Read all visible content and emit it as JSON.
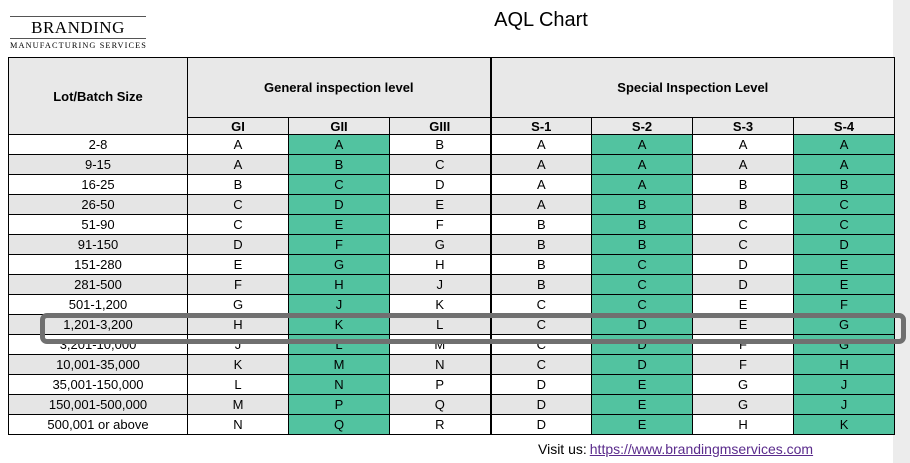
{
  "logo": {
    "name": "BRANDING",
    "tagline": "MANUFACTURING SERVICES"
  },
  "title": "AQL Chart",
  "headers": {
    "lot": "Lot/Batch Size",
    "general": "General inspection level",
    "special": "Special Inspection Level",
    "columns": [
      "GI",
      "GII",
      "GIII",
      "S-1",
      "S-2",
      "S-3",
      "S-4"
    ]
  },
  "rows": [
    {
      "lot": "2-8",
      "codes": [
        "A",
        "A",
        "B",
        "A",
        "A",
        "A",
        "A"
      ]
    },
    {
      "lot": "9-15",
      "codes": [
        "A",
        "B",
        "C",
        "A",
        "A",
        "A",
        "A"
      ]
    },
    {
      "lot": "16-25",
      "codes": [
        "B",
        "C",
        "D",
        "A",
        "A",
        "B",
        "B"
      ]
    },
    {
      "lot": "26-50",
      "codes": [
        "C",
        "D",
        "E",
        "A",
        "B",
        "B",
        "C"
      ]
    },
    {
      "lot": "51-90",
      "codes": [
        "C",
        "E",
        "F",
        "B",
        "B",
        "C",
        "C"
      ]
    },
    {
      "lot": "91-150",
      "codes": [
        "D",
        "F",
        "G",
        "B",
        "B",
        "C",
        "D"
      ]
    },
    {
      "lot": "151-280",
      "codes": [
        "E",
        "G",
        "H",
        "B",
        "C",
        "D",
        "E"
      ]
    },
    {
      "lot": "281-500",
      "codes": [
        "F",
        "H",
        "J",
        "B",
        "C",
        "D",
        "E"
      ]
    },
    {
      "lot": "501-1,200",
      "codes": [
        "G",
        "J",
        "K",
        "C",
        "C",
        "E",
        "F"
      ]
    },
    {
      "lot": "1,201-3,200",
      "codes": [
        "H",
        "K",
        "L",
        "C",
        "D",
        "E",
        "G"
      ]
    },
    {
      "lot": "3,201-10,000",
      "codes": [
        "J",
        "L",
        "M",
        "C",
        "D",
        "F",
        "G"
      ]
    },
    {
      "lot": "10,001-35,000",
      "codes": [
        "K",
        "M",
        "N",
        "C",
        "D",
        "F",
        "H"
      ]
    },
    {
      "lot": "35,001-150,000",
      "codes": [
        "L",
        "N",
        "P",
        "D",
        "E",
        "G",
        "J"
      ]
    },
    {
      "lot": "150,001-500,000",
      "codes": [
        "M",
        "P",
        "Q",
        "D",
        "E",
        "G",
        "J"
      ]
    },
    {
      "lot": "500,001 or above",
      "codes": [
        "N",
        "Q",
        "R",
        "D",
        "E",
        "H",
        "K"
      ]
    }
  ],
  "highlighted_row": "1,201-3,200",
  "footer": {
    "label": "Visit us:",
    "link": "https://www.brandingmservices.com"
  },
  "colors": {
    "highlight_green": "#52c3a0",
    "alt_row": "#e5e5e5",
    "header_bg": "#e8e8e8",
    "link": "#5a2b8c"
  }
}
